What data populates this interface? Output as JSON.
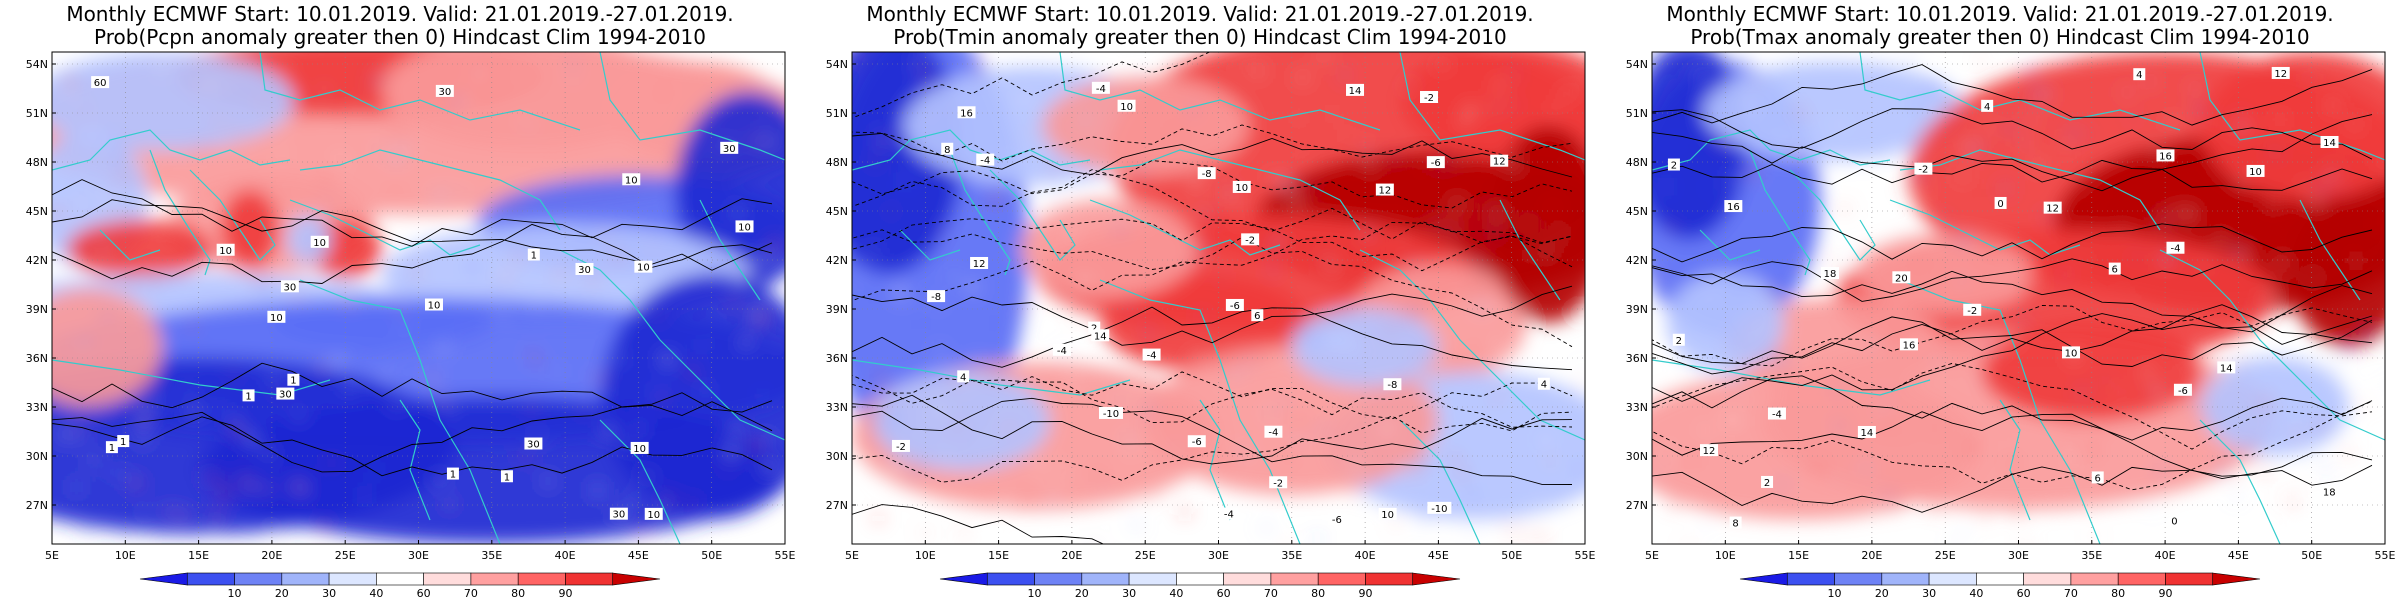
{
  "panels": [
    {
      "title_line1": "Monthly ECMWF Start: 10.01.2019. Valid: 21.01.2019.-27.01.2019.",
      "title_line2": "Prob(Pcpn anomaly greater then 0) Hindcast Clim 1994-2010",
      "variable": "Pcpn",
      "contour_labels": [
        "10",
        "30",
        "30",
        "10",
        "30",
        "60",
        "30",
        "30",
        "30",
        "10",
        "10",
        "30",
        "10",
        "10",
        "10",
        "1",
        "1",
        "10",
        "1",
        "1",
        "1",
        "10",
        "1",
        "1"
      ],
      "bias": "blue-south-red-north"
    },
    {
      "title_line1": "Monthly ECMWF Start: 10.01.2019. Valid: 21.01.2019.-27.01.2019.",
      "title_line2": "Prob(Tmin anomaly greater then 0) Hindcast Clim 1994-2010",
      "variable": "Tmin",
      "contour_labels": [
        "-8",
        "-6",
        "-4",
        "-6",
        "-4",
        "-10",
        "-2",
        "-4",
        "-2",
        "-8",
        "-6",
        "-4",
        "-2",
        "2",
        "-2",
        "-6",
        "-4",
        "-8",
        "4",
        "-4",
        "10",
        "14",
        "12",
        "10",
        "12",
        "4",
        "6",
        "14",
        "8",
        "16",
        "10",
        "12",
        "-10"
      ],
      "bias": "red-east-blue-west"
    },
    {
      "title_line1": "Monthly ECMWF Start: 10.01.2019. Valid: 21.01.2019.-27.01.2019.",
      "title_line2": "Prob(Tmax anomaly greater then 0) Hindcast Clim 1994-2010",
      "variable": "Tmax",
      "contour_labels": [
        "-2",
        "-6",
        "-4",
        "0",
        "2",
        "0",
        "4",
        "6",
        "2",
        "6",
        "10",
        "8",
        "12",
        "14",
        "12",
        "14",
        "16",
        "18",
        "16",
        "20",
        "14",
        "18",
        "16",
        "12",
        "10",
        "4",
        "-2",
        "-4",
        "2"
      ],
      "bias": "red-east-blue-west"
    }
  ],
  "axes": {
    "lat_labels": [
      "54N",
      "51N",
      "48N",
      "45N",
      "42N",
      "39N",
      "36N",
      "33N",
      "30N",
      "27N"
    ],
    "lon_labels": [
      "5E",
      "10E",
      "15E",
      "20E",
      "25E",
      "30E",
      "35E",
      "40E",
      "45E",
      "50E",
      "55E"
    ]
  },
  "colorbar": {
    "labels": [
      "10",
      "20",
      "30",
      "40",
      "60",
      "70",
      "80",
      "90"
    ],
    "colors": [
      "#1a1ae6",
      "#3c50f0",
      "#6e82f5",
      "#a0b4fa",
      "#dce6ff",
      "#ffffff",
      "#ffdcdc",
      "#ffa0a0",
      "#ff6464",
      "#f03232",
      "#c80000"
    ]
  },
  "colors": {
    "coastline": "#33cccc",
    "contour": "#000000",
    "deep_red": "#b40000",
    "red": "#f03c3c",
    "light_red": "#fa9a9a",
    "white": "#ffffff",
    "light_blue": "#b4c3ff",
    "blue": "#5a6ef5",
    "deep_blue": "#1e28d2"
  }
}
